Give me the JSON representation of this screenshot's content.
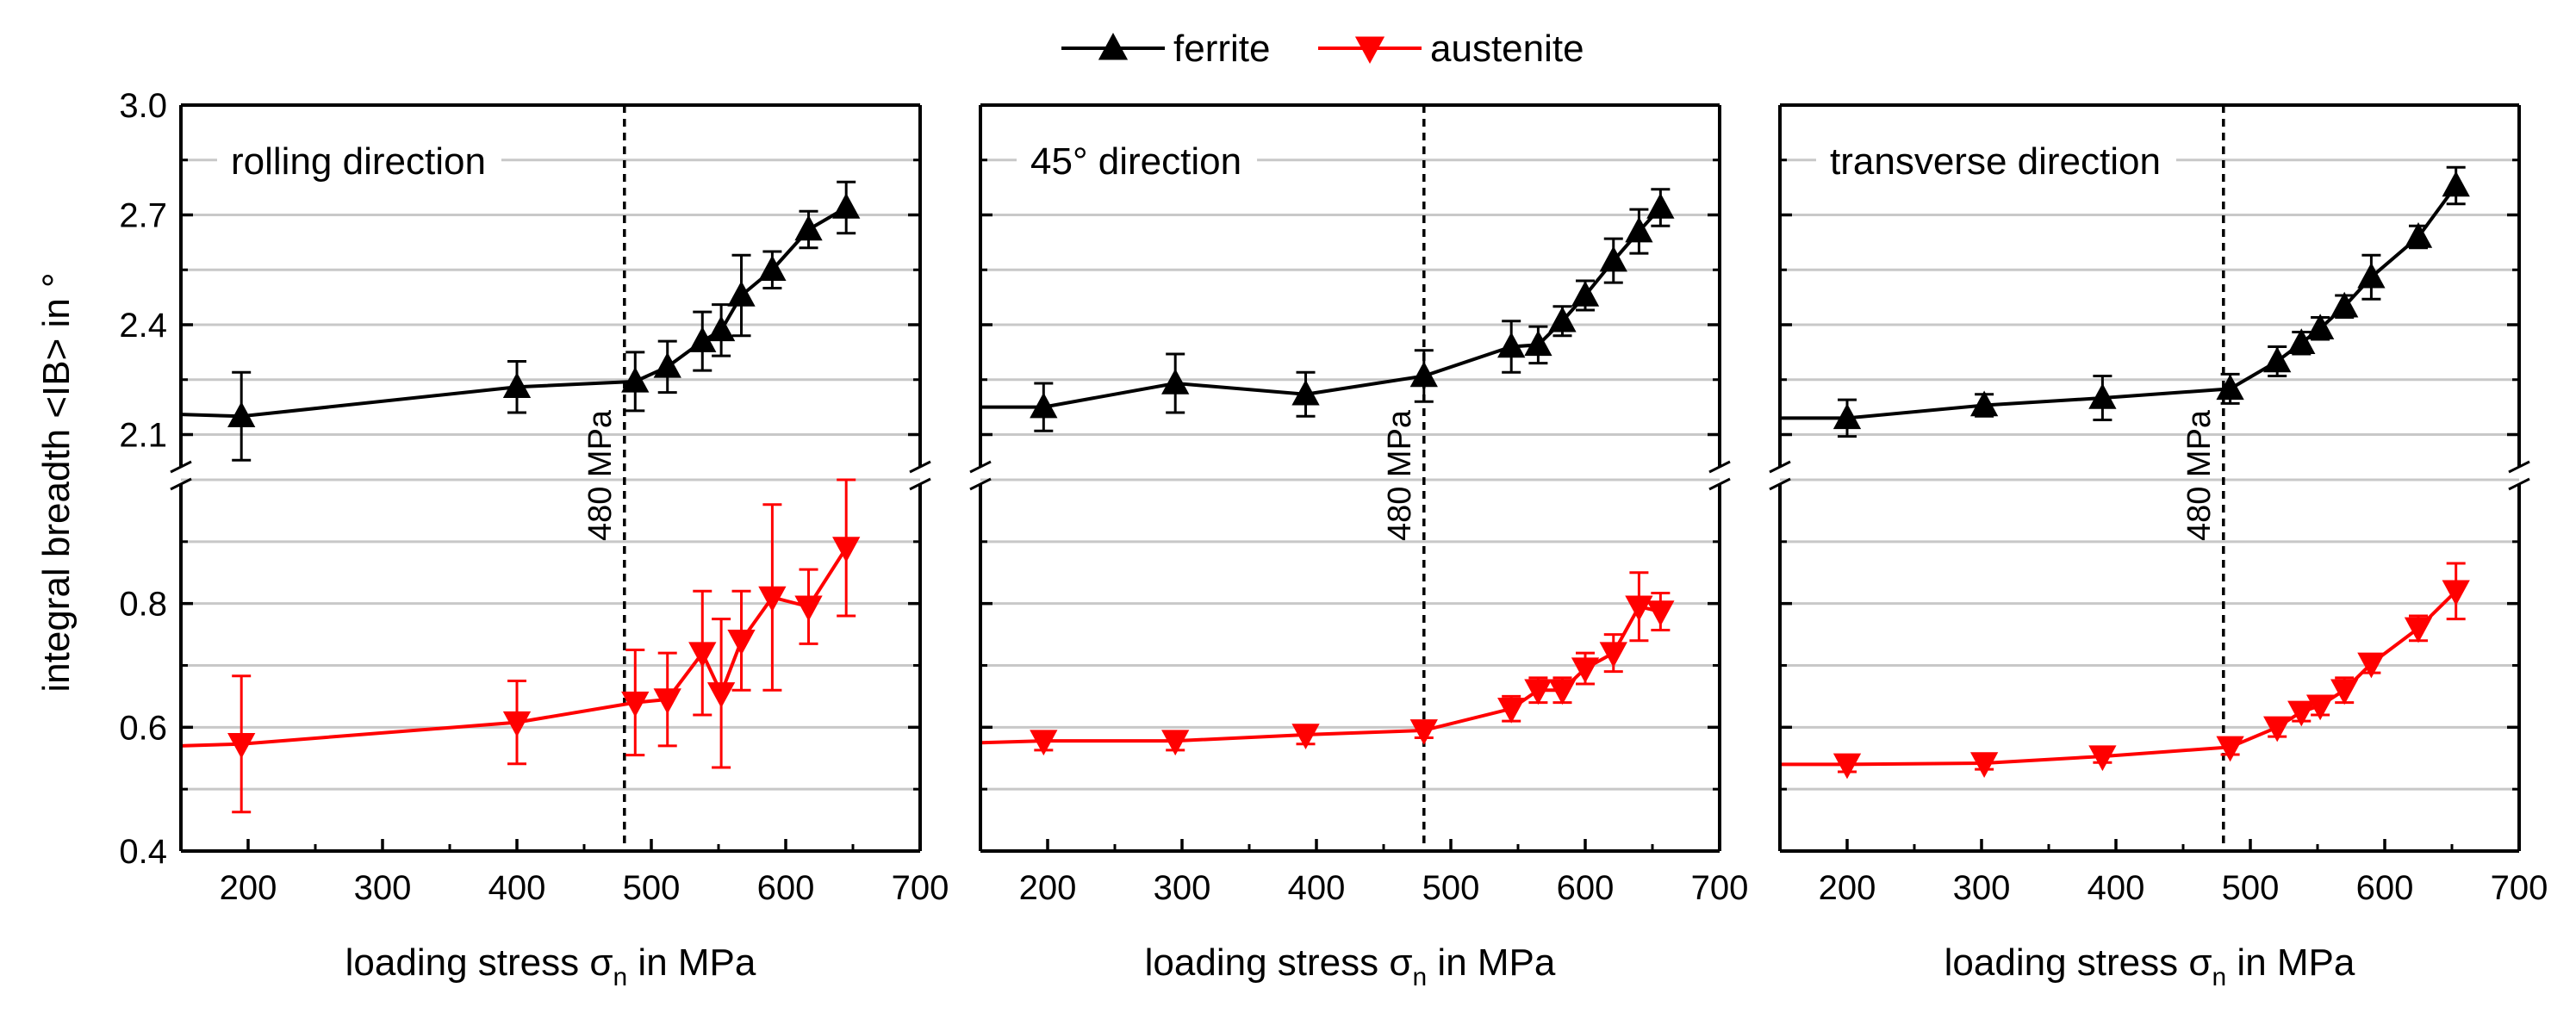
{
  "legend": [
    {
      "name": "ferrite",
      "color": "#000000",
      "marker": "triangle-up"
    },
    {
      "name": "austenite",
      "color": "#ff0000",
      "marker": "triangle-down"
    }
  ],
  "ylabel": "integral breadth <IB> in °",
  "xlabel_main": "loading stress σ",
  "xlabel_sub": "n",
  "xlabel_tail": " in MPa",
  "annotation": "480 MPa",
  "chart_data": [
    {
      "type": "line",
      "panel_label": "rolling direction",
      "xlim": [
        150,
        700
      ],
      "xticks": [
        200,
        300,
        400,
        500,
        600,
        700
      ],
      "upper_ylim": [
        2.0,
        3.0
      ],
      "upper_yticks": [
        "2.1",
        "2.4",
        "2.7",
        "3.0"
      ],
      "lower_ylim": [
        0.4,
        1.0
      ],
      "lower_yticks": [
        "0.4",
        "0.6",
        "0.8"
      ],
      "vline": 480,
      "series": [
        {
          "name": "ferrite",
          "x": [
            150,
            195,
            400,
            488,
            512,
            538,
            552,
            567,
            590,
            617,
            645
          ],
          "y": [
            2.155,
            2.15,
            2.23,
            2.245,
            2.285,
            2.355,
            2.385,
            2.48,
            2.55,
            2.66,
            2.72
          ],
          "err": [
            0,
            0.12,
            0.07,
            0.08,
            0.07,
            0.08,
            0.07,
            0.11,
            0.05,
            0.05,
            0.07
          ]
        },
        {
          "name": "austenite",
          "x": [
            150,
            195,
            400,
            488,
            512,
            538,
            552,
            567,
            590,
            617,
            645
          ],
          "y": [
            0.57,
            0.573,
            0.608,
            0.64,
            0.645,
            0.72,
            0.655,
            0.74,
            0.81,
            0.795,
            0.89
          ],
          "err": [
            0,
            0.11,
            0.067,
            0.085,
            0.075,
            0.1,
            0.12,
            0.08,
            0.15,
            0.06,
            0.11
          ]
        }
      ]
    },
    {
      "type": "line",
      "panel_label": "45° direction",
      "xlim": [
        150,
        700
      ],
      "xticks": [
        200,
        300,
        400,
        500,
        600,
        700
      ],
      "upper_ylim": [
        2.0,
        3.0
      ],
      "upper_yticks": [
        "2.1",
        "2.4",
        "2.7",
        "3.0"
      ],
      "lower_ylim": [
        0.4,
        1.0
      ],
      "lower_yticks": [
        "0.4",
        "0.6",
        "0.8"
      ],
      "vline": 480,
      "series": [
        {
          "name": "ferrite",
          "x": [
            150,
            197,
            295,
            392,
            480,
            545,
            565,
            583,
            600,
            621,
            640,
            656
          ],
          "y": [
            2.175,
            2.175,
            2.24,
            2.21,
            2.26,
            2.34,
            2.345,
            2.41,
            2.48,
            2.575,
            2.655,
            2.72
          ],
          "err": [
            0,
            0.065,
            0.08,
            0.06,
            0.07,
            0.07,
            0.05,
            0.04,
            0.04,
            0.06,
            0.06,
            0.05
          ]
        },
        {
          "name": "austenite",
          "x": [
            150,
            197,
            295,
            392,
            480,
            545,
            565,
            583,
            600,
            621,
            640,
            656
          ],
          "y": [
            0.575,
            0.578,
            0.578,
            0.588,
            0.595,
            0.63,
            0.66,
            0.66,
            0.695,
            0.72,
            0.795,
            0.787
          ],
          "err": [
            0,
            0.015,
            0.015,
            0.015,
            0.012,
            0.02,
            0.02,
            0.02,
            0.025,
            0.03,
            0.055,
            0.03
          ]
        }
      ]
    },
    {
      "type": "line",
      "panel_label": "transverse direction",
      "xlim": [
        150,
        700
      ],
      "xticks": [
        200,
        300,
        400,
        500,
        600,
        700
      ],
      "upper_ylim": [
        2.0,
        3.0
      ],
      "upper_yticks": [
        "2.1",
        "2.4",
        "2.7",
        "3.0"
      ],
      "lower_ylim": [
        0.4,
        1.0
      ],
      "lower_yticks": [
        "0.4",
        "0.6",
        "0.8"
      ],
      "vline": 480,
      "series": [
        {
          "name": "ferrite",
          "x": [
            150,
            200,
            302,
            390,
            485,
            520,
            538,
            552,
            570,
            590,
            625,
            653
          ],
          "y": [
            2.145,
            2.145,
            2.18,
            2.2,
            2.225,
            2.3,
            2.35,
            2.39,
            2.45,
            2.53,
            2.64,
            2.78
          ],
          "err": [
            0,
            0.05,
            0.03,
            0.06,
            0.04,
            0.04,
            0.03,
            0.03,
            0.03,
            0.06,
            0.03,
            0.05
          ]
        },
        {
          "name": "austenite",
          "x": [
            150,
            200,
            302,
            390,
            485,
            520,
            538,
            552,
            570,
            590,
            625,
            653
          ],
          "y": [
            0.54,
            0.54,
            0.542,
            0.553,
            0.568,
            0.6,
            0.625,
            0.635,
            0.66,
            0.703,
            0.76,
            0.82
          ],
          "err": [
            0,
            0.012,
            0.01,
            0.01,
            0.012,
            0.015,
            0.015,
            0.015,
            0.02,
            0.015,
            0.02,
            0.045
          ]
        }
      ]
    }
  ]
}
